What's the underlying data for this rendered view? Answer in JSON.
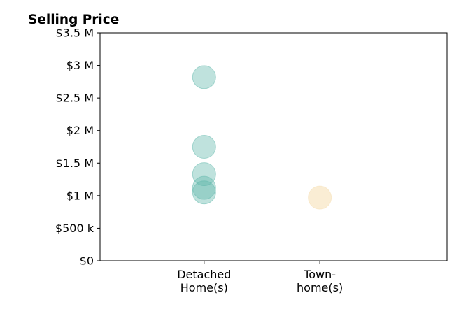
{
  "chart_data": {
    "type": "scatter",
    "title": "Selling Price",
    "xlabel": "",
    "ylabel": "",
    "categories": [
      [
        "Detached",
        "Home(s)"
      ],
      [
        "Town-",
        "home(s)"
      ]
    ],
    "ylim": [
      0,
      3500000
    ],
    "yticks": [
      {
        "value": 0,
        "label": "$0"
      },
      {
        "value": 500000,
        "label": "$500 k"
      },
      {
        "value": 1000000,
        "label": "$1 M"
      },
      {
        "value": 1500000,
        "label": "$1.5 M"
      },
      {
        "value": 2000000,
        "label": "$2 M"
      },
      {
        "value": 2500000,
        "label": "$2.5 M"
      },
      {
        "value": 3000000,
        "label": "$3 M"
      },
      {
        "value": 3500000,
        "label": "$3.5 M"
      }
    ],
    "grid": false,
    "legend": "none",
    "series": [
      {
        "category": "Detached Home(s)",
        "color": "#5fb7ab",
        "values": [
          2820000,
          1750000,
          1330000,
          1120000,
          1050000
        ]
      },
      {
        "category": "Town-home(s)",
        "color": "#f5deb0",
        "values": [
          970000
        ]
      }
    ]
  }
}
